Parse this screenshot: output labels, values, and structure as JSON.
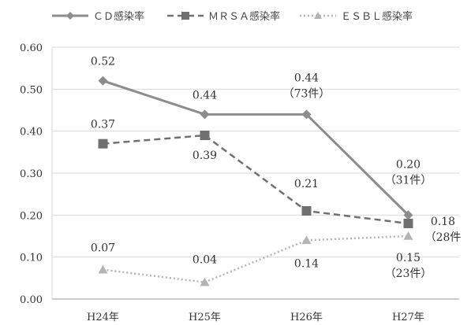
{
  "chart_data": {
    "type": "line",
    "categories": [
      "H24年",
      "H25年",
      "H26年",
      "H27年"
    ],
    "ylim": [
      0,
      0.6
    ],
    "ytick_labels": [
      "0.00",
      "0.10",
      "0.20",
      "0.30",
      "0.40",
      "0.50",
      "0.60"
    ],
    "grid": true,
    "legend_position": "top",
    "series": [
      {
        "name": "ＣＤ感染率",
        "color": "#8c8c8c",
        "line_style": "solid",
        "marker": "diamond",
        "values": [
          0.52,
          0.44,
          0.44,
          0.2
        ],
        "labels": [
          [
            "0.52"
          ],
          [
            "0.44"
          ],
          [
            "0.44",
            "（73件）"
          ],
          [
            "0.20",
            "（31件）"
          ]
        ]
      },
      {
        "name": "ＭＲＳＡ感染率",
        "color": "#707070",
        "line_style": "dashed",
        "marker": "square",
        "values": [
          0.37,
          0.39,
          0.21,
          0.18
        ],
        "labels": [
          [
            "0.37"
          ],
          [
            "0.39"
          ],
          [
            "0.21"
          ],
          [
            "0.18",
            "（28件"
          ]
        ]
      },
      {
        "name": "ＥＳＢＬ感染率",
        "color": "#b4b4b4",
        "line_style": "dotted",
        "marker": "triangle",
        "values": [
          0.07,
          0.04,
          0.14,
          0.15
        ],
        "labels": [
          [
            "0.07"
          ],
          [
            "0.04"
          ],
          [
            "0.14"
          ],
          [
            "0.15",
            "（23件）"
          ]
        ]
      }
    ]
  }
}
